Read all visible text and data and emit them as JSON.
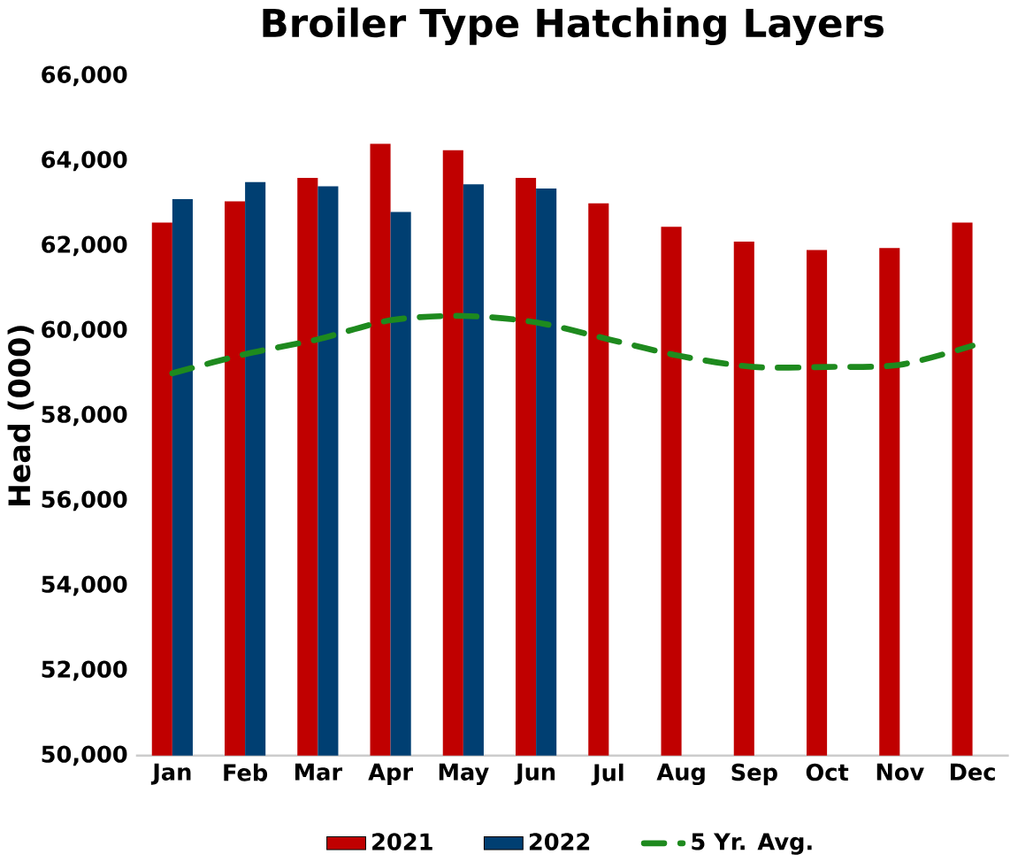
{
  "chart_data": {
    "type": "bar",
    "title": "Broiler Type Hatching Layers",
    "ylabel": "Head (000)",
    "categories": [
      "Jan",
      "Feb",
      "Mar",
      "Apr",
      "May",
      "Jun",
      "Jul",
      "Aug",
      "Sep",
      "Oct",
      "Nov",
      "Dec"
    ],
    "series": [
      {
        "name": "2021",
        "color": "#c00000",
        "values": [
          62550,
          63050,
          63600,
          64400,
          64250,
          63600,
          63000,
          62450,
          62100,
          61900,
          61950,
          62550
        ]
      },
      {
        "name": "2022",
        "color": "#003f72",
        "values": [
          63100,
          63500,
          63400,
          62800,
          63450,
          63350,
          null,
          null,
          null,
          null,
          null,
          null
        ]
      },
      {
        "name": "5 Yr. Avg.",
        "type": "line",
        "color": "#1e8a1e",
        "line_style": "dashed",
        "values": [
          59000,
          59450,
          59800,
          60250,
          60350,
          60200,
          59800,
          59400,
          59150,
          59150,
          59200,
          59650
        ]
      }
    ],
    "ylim": [
      50000,
      66000
    ],
    "yticks": [
      {
        "value": 50000,
        "label": "50,000"
      },
      {
        "value": 52000,
        "label": "52,000"
      },
      {
        "value": 54000,
        "label": "54,000"
      },
      {
        "value": 56000,
        "label": "56,000"
      },
      {
        "value": 58000,
        "label": "58,000"
      },
      {
        "value": 60000,
        "label": "60,000"
      },
      {
        "value": 62000,
        "label": "62,000"
      },
      {
        "value": 64000,
        "label": "64,000"
      },
      {
        "value": 66000,
        "label": "66,000"
      }
    ],
    "grid": false,
    "legend": "bottom",
    "marker": "none"
  }
}
